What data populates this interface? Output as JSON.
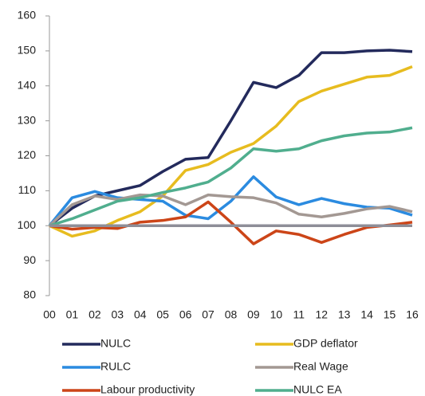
{
  "chart_data": {
    "type": "line",
    "categories": [
      "00",
      "01",
      "02",
      "03",
      "04",
      "05",
      "06",
      "07",
      "08",
      "09",
      "10",
      "11",
      "12",
      "13",
      "14",
      "15",
      "16"
    ],
    "series": [
      {
        "name": "NULC",
        "color": "#232a5c",
        "values": [
          100,
          105,
          108.5,
          110,
          111.5,
          115.5,
          119,
          119.5,
          130,
          141,
          139.5,
          143,
          149.5,
          149.5,
          150,
          150.2,
          149.8
        ]
      },
      {
        "name": "GDP deflator",
        "color": "#e7bc1f",
        "values": [
          100,
          97,
          98.5,
          101.5,
          104,
          108.5,
          115.8,
          117.5,
          121,
          123.5,
          128.5,
          135.5,
          138.5,
          140.5,
          142.5,
          143,
          145.5
        ]
      },
      {
        "name": "RULC",
        "color": "#2b8be0",
        "values": [
          100,
          108,
          109.8,
          108,
          107.5,
          107,
          103,
          102,
          107,
          114,
          108.2,
          106,
          107.8,
          106.3,
          105.3,
          105,
          103
        ]
      },
      {
        "name": "Real Wage",
        "color": "#a39893",
        "values": [
          100,
          106,
          108.5,
          107.5,
          108.8,
          108.5,
          106,
          108.8,
          108.3,
          108,
          106.5,
          103.3,
          102.5,
          103.5,
          104.8,
          105.5,
          104
        ]
      },
      {
        "name": "Labour productivity",
        "color": "#cc4518",
        "values": [
          100,
          99,
          99.5,
          99.2,
          101,
          101.5,
          102.5,
          106.8,
          101,
          94.8,
          98.5,
          97.5,
          95.2,
          97.5,
          99.5,
          100.2,
          101
        ]
      },
      {
        "name": "NULC EA",
        "color": "#50ae8e",
        "values": [
          100,
          102,
          104.5,
          107,
          108,
          109.5,
          110.8,
          112.5,
          116.5,
          122,
          121.3,
          122,
          124.3,
          125.7,
          126.5,
          126.8,
          128
        ]
      }
    ],
    "reference_line": 100,
    "reference_color": "#8e8e98",
    "ylim": [
      80,
      160
    ],
    "yticks": [
      80,
      90,
      100,
      110,
      120,
      130,
      140,
      150,
      160
    ],
    "grid": false
  }
}
